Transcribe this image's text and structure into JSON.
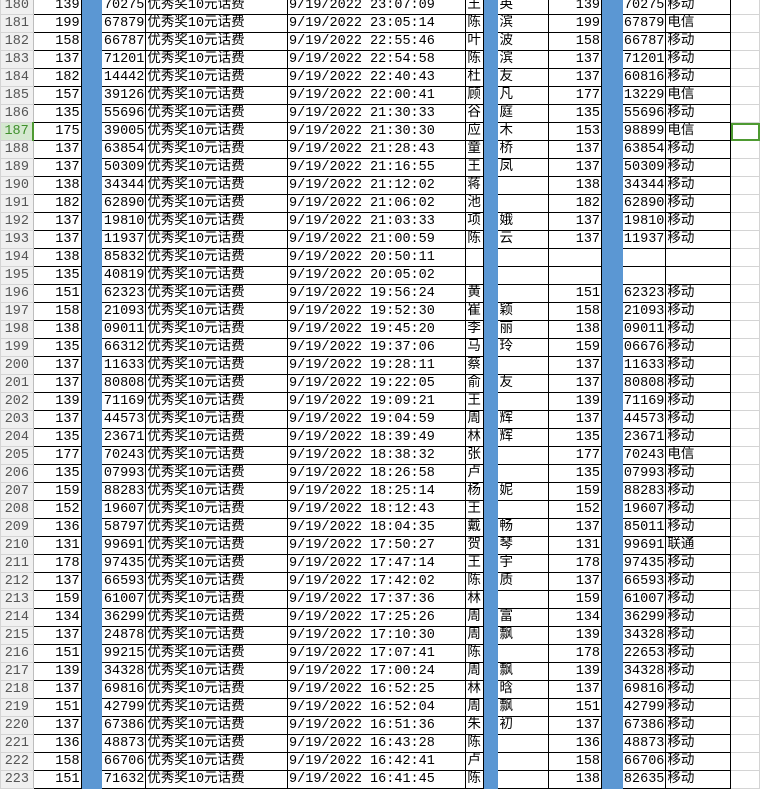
{
  "colors": {
    "accent_blue": "#5b97d3",
    "selection_green": "#4e9a32"
  },
  "selected_row": "187",
  "item_label": "优秀奖10元话费",
  "date": "9/19/2022",
  "rows": [
    [
      "180",
      "139",
      "70275",
      "23:07:09",
      "王",
      "英",
      "139",
      "70275",
      "移动"
    ],
    [
      "181",
      "199",
      "67879",
      "23:05:14",
      "陈",
      "滨",
      "199",
      "67879",
      "电信"
    ],
    [
      "182",
      "158",
      "66787",
      "22:55:46",
      "叶",
      "波",
      "158",
      "66787",
      "移动"
    ],
    [
      "183",
      "137",
      "71201",
      "22:54:58",
      "陈",
      "滨",
      "137",
      "71201",
      "移动"
    ],
    [
      "184",
      "182",
      "14442",
      "22:40:43",
      "杜",
      "友",
      "137",
      "60816",
      "移动"
    ],
    [
      "185",
      "157",
      "39126",
      "22:00:41",
      "顾",
      "凡",
      "177",
      "13229",
      "电信"
    ],
    [
      "186",
      "135",
      "55696",
      "21:30:33",
      "谷",
      "庭",
      "135",
      "55696",
      "移动"
    ],
    [
      "187",
      "175",
      "39005",
      "21:30:30",
      "应",
      "木",
      "153",
      "98899",
      "电信"
    ],
    [
      "188",
      "137",
      "63854",
      "21:28:43",
      "童",
      "桥",
      "137",
      "63854",
      "移动"
    ],
    [
      "189",
      "137",
      "50309",
      "21:16:55",
      "王",
      "凤",
      "137",
      "50309",
      "移动"
    ],
    [
      "190",
      "138",
      "34344",
      "21:12:02",
      "蒋",
      "",
      "138",
      "34344",
      "移动"
    ],
    [
      "191",
      "182",
      "62890",
      "21:06:02",
      "池",
      "",
      "182",
      "62890",
      "移动"
    ],
    [
      "192",
      "137",
      "19810",
      "21:03:33",
      "项",
      "娥",
      "137",
      "19810",
      "移动"
    ],
    [
      "193",
      "137",
      "11937",
      "21:00:59",
      "陈",
      "云",
      "137",
      "11937",
      "移动"
    ],
    [
      "194",
      "138",
      "85832",
      "20:50:11",
      "",
      "",
      "",
      "",
      ""
    ],
    [
      "195",
      "135",
      "40819",
      "20:05:02",
      "",
      "",
      "",
      "",
      ""
    ],
    [
      "196",
      "151",
      "62323",
      "19:56:24",
      "黄",
      "",
      "151",
      "62323",
      "移动"
    ],
    [
      "197",
      "158",
      "21093",
      "19:52:30",
      "崔",
      "颖",
      "158",
      "21093",
      "移动"
    ],
    [
      "198",
      "138",
      "09011",
      "19:45:20",
      "李",
      "丽",
      "138",
      "09011",
      "移动"
    ],
    [
      "199",
      "135",
      "66312",
      "19:37:06",
      "马",
      "玲",
      "159",
      "06676",
      "移动"
    ],
    [
      "200",
      "137",
      "11633",
      "19:28:11",
      "蔡",
      "",
      "137",
      "11633",
      "移动"
    ],
    [
      "201",
      "137",
      "80808",
      "19:22:05",
      "俞",
      "友",
      "137",
      "80808",
      "移动"
    ],
    [
      "202",
      "139",
      "71169",
      "19:09:21",
      "王",
      "",
      "139",
      "71169",
      "移动"
    ],
    [
      "203",
      "137",
      "44573",
      "19:04:59",
      "周",
      "辉",
      "137",
      "44573",
      "移动"
    ],
    [
      "204",
      "135",
      "23671",
      "18:39:49",
      "林",
      "辉",
      "135",
      "23671",
      "移动"
    ],
    [
      "205",
      "177",
      "70243",
      "18:38:32",
      "张",
      "",
      "177",
      "70243",
      "电信"
    ],
    [
      "206",
      "135",
      "07993",
      "18:26:58",
      "卢",
      "",
      "135",
      "07993",
      "移动"
    ],
    [
      "207",
      "159",
      "88283",
      "18:25:14",
      "杨",
      "妮",
      "159",
      "88283",
      "移动"
    ],
    [
      "208",
      "152",
      "19607",
      "18:12:43",
      "王",
      "",
      "152",
      "19607",
      "移动"
    ],
    [
      "209",
      "136",
      "58797",
      "18:04:35",
      "戴",
      "畅",
      "137",
      "85011",
      "移动"
    ],
    [
      "210",
      "131",
      "99691",
      "17:50:27",
      "贺",
      "琴",
      "131",
      "99691",
      "联通"
    ],
    [
      "211",
      "178",
      "97435",
      "17:47:14",
      "王",
      "宇",
      "178",
      "97435",
      "移动"
    ],
    [
      "212",
      "137",
      "66593",
      "17:42:02",
      "陈",
      "质",
      "137",
      "66593",
      "移动"
    ],
    [
      "213",
      "159",
      "61007",
      "17:37:36",
      "林",
      "",
      "159",
      "61007",
      "移动"
    ],
    [
      "214",
      "134",
      "36299",
      "17:25:26",
      "周",
      "富",
      "134",
      "36299",
      "移动"
    ],
    [
      "215",
      "137",
      "24878",
      "17:10:30",
      "周",
      "飘",
      "139",
      "34328",
      "移动"
    ],
    [
      "216",
      "151",
      "99215",
      "17:07:41",
      "陈",
      "",
      "178",
      "22653",
      "移动"
    ],
    [
      "217",
      "139",
      "34328",
      "17:00:24",
      "周",
      "飘",
      "139",
      "34328",
      "移动"
    ],
    [
      "218",
      "137",
      "69816",
      "16:52:25",
      "林",
      "晗",
      "137",
      "69816",
      "移动"
    ],
    [
      "219",
      "151",
      "42799",
      "16:52:04",
      "周",
      "飘",
      "151",
      "42799",
      "移动"
    ],
    [
      "220",
      "137",
      "67386",
      "16:51:36",
      "朱",
      "初",
      "137",
      "67386",
      "移动"
    ],
    [
      "221",
      "136",
      "48873",
      "16:43:28",
      "陈",
      "",
      "136",
      "48873",
      "移动"
    ],
    [
      "222",
      "158",
      "66706",
      "16:42:41",
      "卢",
      "",
      "158",
      "66706",
      "移动"
    ],
    [
      "223",
      "151",
      "71632",
      "16:41:45",
      "陈",
      "",
      "138",
      "82635",
      "移动"
    ]
  ]
}
